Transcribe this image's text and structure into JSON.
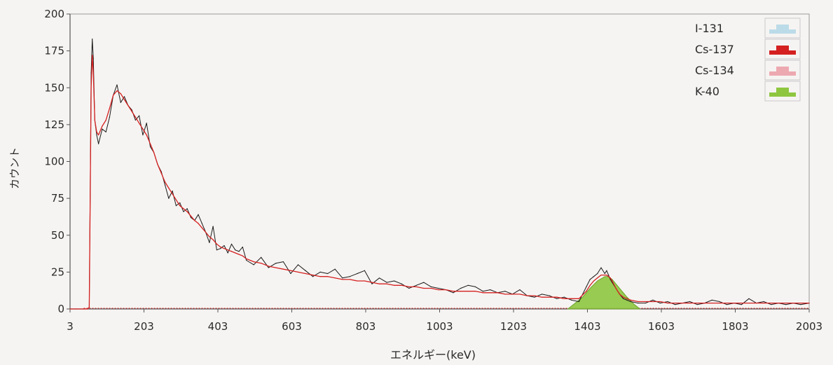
{
  "chart_data": {
    "type": "line",
    "title": "",
    "xlabel": "エネルギー(keV)",
    "ylabel": "カウント",
    "xlim": [
      3,
      2003
    ],
    "ylim": [
      0,
      200
    ],
    "x_ticks": [
      3,
      203,
      403,
      603,
      803,
      1003,
      1203,
      1403,
      1603,
      1803,
      2003
    ],
    "y_ticks": [
      0,
      25,
      50,
      75,
      100,
      125,
      150,
      175,
      200
    ],
    "grid": false,
    "legend_position": "top-right",
    "series": [
      {
        "name": "spectrum-measured",
        "color": "#1a1a1a",
        "x": [
          3,
          20,
          40,
          50,
          55,
          60,
          63,
          66,
          70,
          75,
          80,
          90,
          100,
          110,
          120,
          130,
          140,
          150,
          160,
          170,
          180,
          190,
          200,
          210,
          220,
          230,
          240,
          250,
          260,
          270,
          280,
          290,
          300,
          310,
          320,
          330,
          340,
          350,
          360,
          370,
          380,
          390,
          400,
          410,
          420,
          430,
          440,
          450,
          460,
          470,
          480,
          500,
          520,
          540,
          560,
          580,
          600,
          620,
          640,
          660,
          680,
          700,
          720,
          740,
          760,
          780,
          800,
          820,
          840,
          860,
          880,
          900,
          920,
          940,
          960,
          980,
          1000,
          1020,
          1040,
          1060,
          1080,
          1100,
          1120,
          1140,
          1160,
          1180,
          1200,
          1220,
          1240,
          1260,
          1280,
          1300,
          1320,
          1340,
          1360,
          1380,
          1400,
          1410,
          1420,
          1430,
          1440,
          1450,
          1455,
          1460,
          1465,
          1470,
          1480,
          1490,
          1500,
          1510,
          1520,
          1540,
          1560,
          1580,
          1600,
          1620,
          1640,
          1660,
          1680,
          1700,
          1720,
          1740,
          1760,
          1780,
          1800,
          1820,
          1840,
          1860,
          1880,
          1900,
          1920,
          1940,
          1960,
          1980,
          2003
        ],
        "y": [
          0,
          0,
          0,
          0,
          1,
          160,
          183,
          170,
          128,
          118,
          112,
          122,
          120,
          130,
          145,
          152,
          140,
          144,
          138,
          135,
          128,
          131,
          118,
          126,
          110,
          106,
          98,
          93,
          84,
          75,
          80,
          70,
          72,
          66,
          68,
          62,
          60,
          64,
          58,
          52,
          45,
          56,
          40,
          41,
          43,
          38,
          44,
          40,
          39,
          42,
          33,
          30,
          35,
          28,
          31,
          32,
          24,
          30,
          26,
          22,
          25,
          24,
          27,
          21,
          22,
          24,
          26,
          17,
          21,
          18,
          19,
          17,
          14,
          16,
          18,
          15,
          14,
          13,
          11,
          14,
          16,
          15,
          12,
          13,
          11,
          12,
          10,
          13,
          9,
          8,
          10,
          9,
          7,
          8,
          6,
          5,
          15,
          20,
          22,
          24,
          28,
          24,
          26,
          23,
          20,
          18,
          14,
          10,
          7,
          6,
          5,
          4,
          4,
          6,
          4,
          5,
          3,
          4,
          5,
          3,
          4,
          6,
          5,
          3,
          4,
          3,
          7,
          4,
          5,
          3,
          4,
          3,
          4,
          3,
          4
        ]
      },
      {
        "name": "spectrum-fit",
        "color": "#d42020",
        "x": [
          3,
          20,
          40,
          50,
          55,
          60,
          63,
          66,
          70,
          75,
          80,
          90,
          100,
          110,
          120,
          130,
          140,
          150,
          160,
          170,
          180,
          190,
          200,
          210,
          220,
          230,
          240,
          250,
          260,
          270,
          280,
          290,
          300,
          310,
          320,
          330,
          340,
          350,
          360,
          370,
          380,
          390,
          400,
          410,
          420,
          430,
          440,
          450,
          460,
          470,
          480,
          500,
          520,
          540,
          560,
          580,
          600,
          620,
          640,
          660,
          680,
          700,
          720,
          740,
          760,
          780,
          800,
          820,
          840,
          860,
          880,
          900,
          920,
          940,
          960,
          980,
          1000,
          1020,
          1040,
          1060,
          1080,
          1100,
          1120,
          1140,
          1160,
          1180,
          1200,
          1220,
          1240,
          1260,
          1280,
          1300,
          1320,
          1340,
          1360,
          1380,
          1400,
          1410,
          1420,
          1430,
          1440,
          1450,
          1455,
          1460,
          1465,
          1470,
          1480,
          1490,
          1500,
          1510,
          1520,
          1540,
          1560,
          1580,
          1600,
          1620,
          1640,
          1660,
          1680,
          1700,
          1720,
          1740,
          1760,
          1780,
          1800,
          1820,
          1840,
          1860,
          1880,
          1900,
          1920,
          1940,
          1960,
          1980,
          2003
        ],
        "y": [
          0,
          0,
          0,
          0,
          1,
          150,
          172,
          160,
          128,
          120,
          118,
          124,
          128,
          136,
          145,
          148,
          146,
          142,
          138,
          134,
          130,
          126,
          122,
          118,
          112,
          106,
          98,
          92,
          86,
          82,
          78,
          74,
          70,
          68,
          66,
          63,
          60,
          58,
          55,
          52,
          49,
          47,
          44,
          42,
          41,
          40,
          39,
          38,
          37,
          36,
          34,
          32,
          31,
          29,
          28,
          27,
          26,
          25,
          24,
          23,
          22,
          22,
          21,
          20,
          20,
          19,
          19,
          18,
          17,
          17,
          16,
          16,
          15,
          15,
          14,
          14,
          13,
          13,
          12,
          12,
          12,
          12,
          11,
          11,
          11,
          10,
          10,
          10,
          9,
          9,
          8,
          8,
          8,
          7,
          7,
          7,
          12,
          16,
          19,
          21,
          23,
          23,
          23,
          22,
          21,
          19,
          14,
          10,
          8,
          7,
          6,
          5,
          5,
          5,
          5,
          4,
          4,
          4,
          4,
          4,
          4,
          4,
          4,
          4,
          4,
          4,
          4,
          4,
          4,
          4,
          4,
          4,
          4,
          4,
          4
        ]
      },
      {
        "name": "K-40-peak-area",
        "color": "#8ec63f",
        "x": [
          1350,
          1370,
          1390,
          1410,
          1430,
          1450,
          1460,
          1470,
          1490,
          1510,
          1530,
          1545
        ],
        "y": [
          0,
          4,
          8,
          14,
          19,
          22,
          22,
          20,
          14,
          8,
          3,
          0
        ]
      }
    ],
    "legend": [
      {
        "label": "I-131",
        "color": "#bcdbe8"
      },
      {
        "label": "Cs-137",
        "color": "#d42020"
      },
      {
        "label": "Cs-134",
        "color": "#eda9b0"
      },
      {
        "label": "K-40",
        "color": "#8ec63f"
      }
    ]
  }
}
